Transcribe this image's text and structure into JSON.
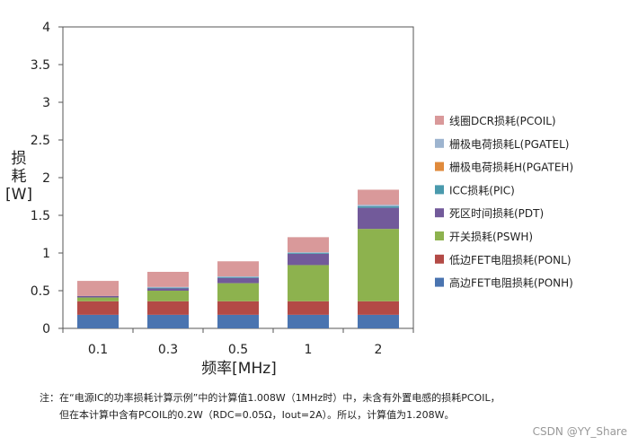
{
  "chart_data": {
    "type": "bar",
    "stacked": true,
    "categories": [
      "0.1",
      "0.3",
      "0.5",
      "1",
      "2"
    ],
    "xlabel": "频率[MHz]",
    "ylabel_lines": [
      "损",
      "耗",
      "[W]"
    ],
    "ylim": [
      0,
      4
    ],
    "yticks": [
      "0",
      "0.5",
      "1",
      "1.5",
      "2",
      "2.5",
      "3",
      "3.5",
      "4"
    ],
    "grid": false,
    "legend_position": "right",
    "series": [
      {
        "name": "高边FET电阻损耗(PONH)",
        "color": "#4a74b0",
        "values": [
          0.18,
          0.18,
          0.18,
          0.18,
          0.18
        ]
      },
      {
        "name": "低边FET电阻损耗(PONL)",
        "color": "#b34a46",
        "values": [
          0.18,
          0.18,
          0.18,
          0.18,
          0.18
        ]
      },
      {
        "name": "开关损耗(PSWH)",
        "color": "#8db24e",
        "values": [
          0.05,
          0.14,
          0.24,
          0.48,
          0.96
        ]
      },
      {
        "name": "死区时间损耗(PDT)",
        "color": "#725a9a",
        "values": [
          0.02,
          0.03,
          0.07,
          0.15,
          0.28
        ]
      },
      {
        "name": "ICC损耗(PIC)",
        "color": "#4a9aad",
        "values": [
          0.0,
          0.01,
          0.01,
          0.01,
          0.02
        ]
      },
      {
        "name": "栅极电荷损耗H(PGATEH)",
        "color": "#e08a3c",
        "values": [
          0.0,
          0.0,
          0.0,
          0.0,
          0.0
        ]
      },
      {
        "name": "栅极电荷损耗L(PGATEL)",
        "color": "#9db4cf",
        "values": [
          0.0,
          0.01,
          0.01,
          0.01,
          0.02
        ]
      },
      {
        "name": "线圈DCR损耗(PCOIL)",
        "color": "#d9999a",
        "values": [
          0.2,
          0.2,
          0.2,
          0.2,
          0.2
        ]
      }
    ]
  },
  "note": {
    "line1": "注：在“电源IC的功率损耗计算示例”中的计算值1.008W（1MHz时）中，未含有外置电感的损耗PCOIL，",
    "line2": "但在本计算中含有PCOIL的0.2W（RDC=0.05Ω，Iout=2A）。所以，计算值为1.208W。"
  },
  "watermark": "CSDN @YY_Share"
}
